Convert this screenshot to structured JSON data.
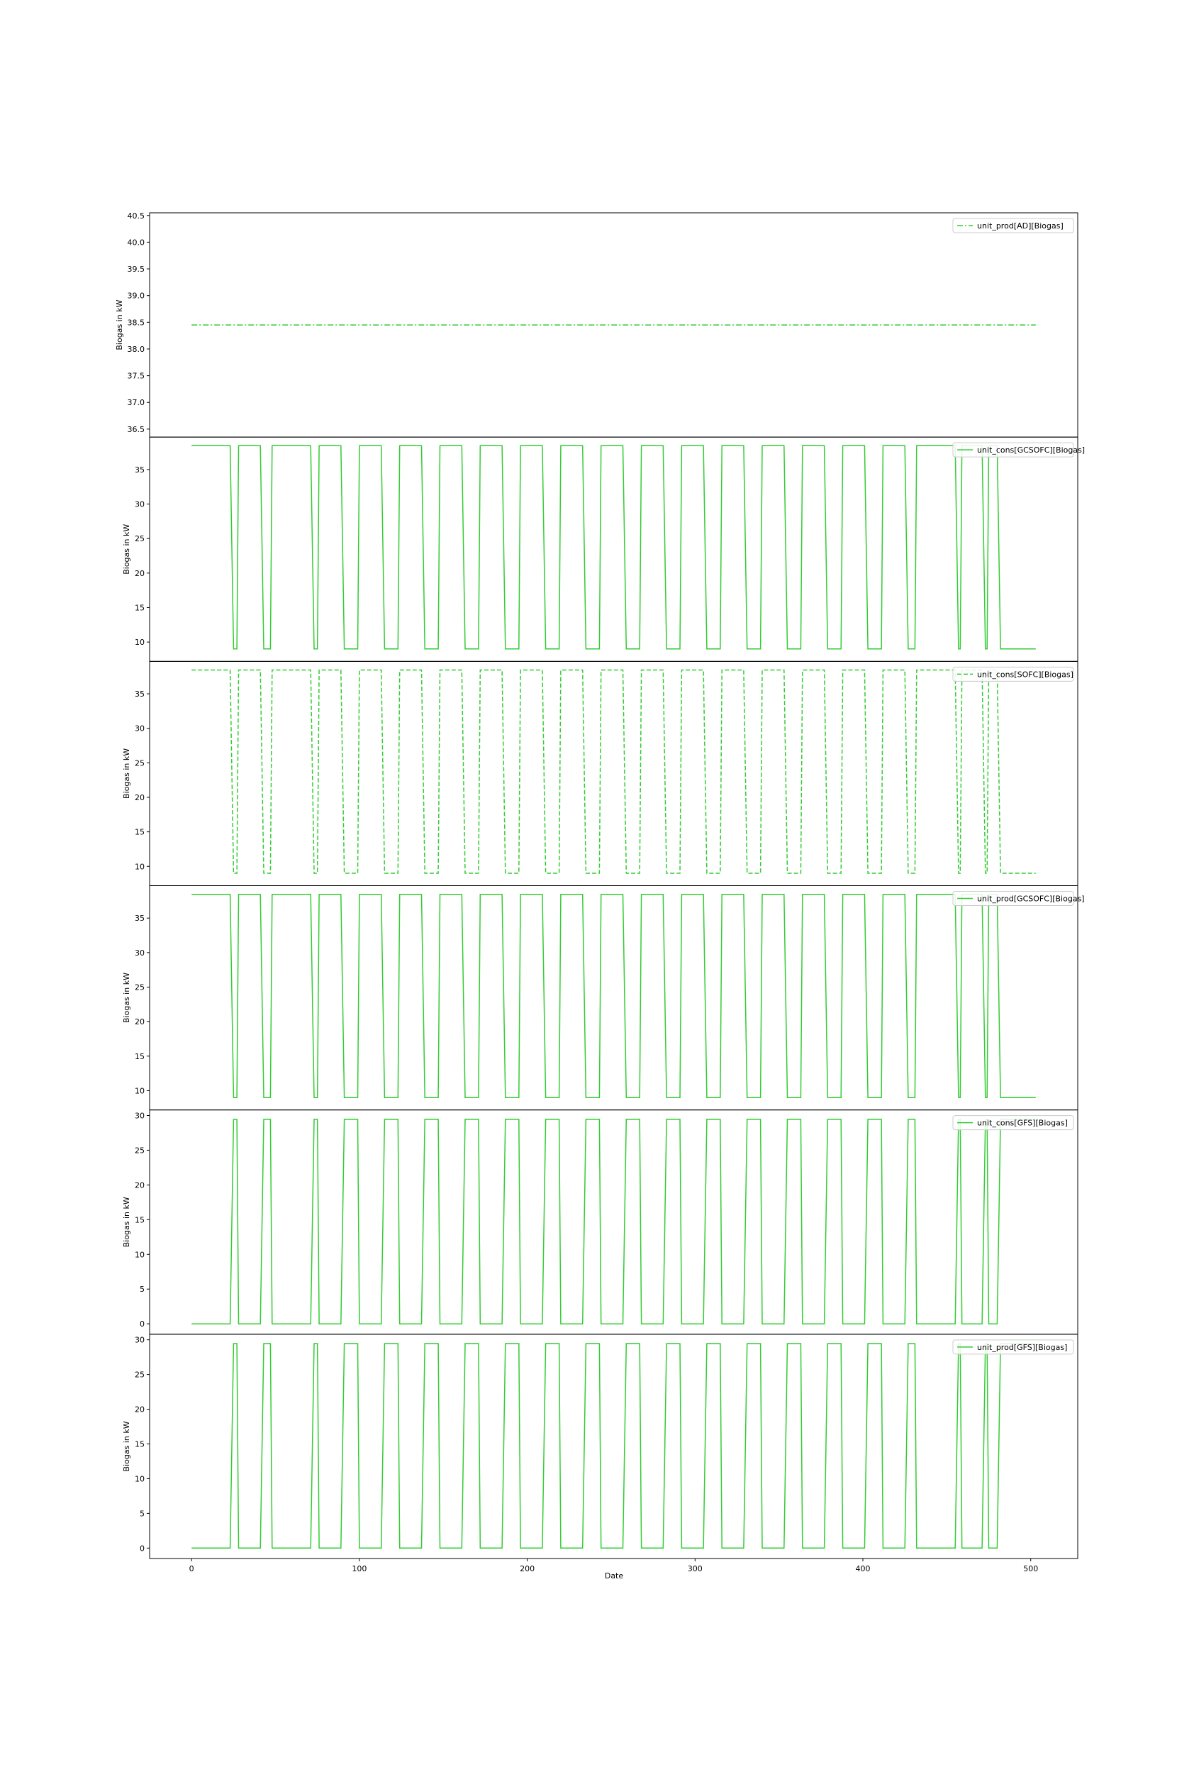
{
  "figure": {
    "xlabel": "Date"
  },
  "chart_data": [
    {
      "type": "line",
      "ylabel": "Biogas in kW",
      "xlim": [
        -25,
        528
      ],
      "ylim": [
        36.35,
        40.55
      ],
      "yticks": [
        36.5,
        37.0,
        37.5,
        38.0,
        38.5,
        39.0,
        39.5,
        40.0,
        40.5
      ],
      "ytick_labels": [
        "36.5",
        "37.0",
        "37.5",
        "38.0",
        "38.5",
        "39.0",
        "39.5",
        "40.0",
        "40.5"
      ],
      "line_style": "dashdot",
      "color": "#33cc33",
      "legend_position": "top-right",
      "series": [
        {
          "name": "unit_prod[AD][Biogas]",
          "x": [
            0,
            503
          ],
          "values": [
            38.45,
            38.45
          ]
        }
      ]
    },
    {
      "type": "line",
      "ylabel": "Biogas in kW",
      "xlim": [
        -25,
        528
      ],
      "ylim": [
        7.2,
        39.7
      ],
      "yticks": [
        10,
        15,
        20,
        25,
        30,
        35
      ],
      "ytick_labels": [
        "10",
        "15",
        "20",
        "25",
        "30",
        "35"
      ],
      "line_style": "solid",
      "color": "#33cc33",
      "legend_position": "top-right",
      "series": [
        {
          "name": "unit_cons[GCSOFC][Biogas]",
          "pattern": "high",
          "high": 38.45,
          "low": 9.0
        }
      ]
    },
    {
      "type": "line",
      "ylabel": "Biogas in kW",
      "xlim": [
        -25,
        528
      ],
      "ylim": [
        7.2,
        39.7
      ],
      "yticks": [
        10,
        15,
        20,
        25,
        30,
        35
      ],
      "ytick_labels": [
        "10",
        "15",
        "20",
        "25",
        "30",
        "35"
      ],
      "line_style": "dashed",
      "color": "#33cc33",
      "legend_position": "top-right",
      "series": [
        {
          "name": "unit_cons[SOFC][Biogas]",
          "pattern": "high",
          "high": 38.45,
          "low": 9.0
        }
      ]
    },
    {
      "type": "line",
      "ylabel": "Biogas in kW",
      "xlim": [
        -25,
        528
      ],
      "ylim": [
        7.2,
        39.7
      ],
      "yticks": [
        10,
        15,
        20,
        25,
        30,
        35
      ],
      "ytick_labels": [
        "10",
        "15",
        "20",
        "25",
        "30",
        "35"
      ],
      "line_style": "solid",
      "color": "#33cc33",
      "legend_position": "top-right",
      "series": [
        {
          "name": "unit_prod[GCSOFC][Biogas]",
          "pattern": "high",
          "high": 38.45,
          "low": 9.0
        }
      ]
    },
    {
      "type": "line",
      "ylabel": "Biogas in kW",
      "xlim": [
        -25,
        528
      ],
      "ylim": [
        -1.5,
        30.8
      ],
      "yticks": [
        0,
        5,
        10,
        15,
        20,
        25,
        30
      ],
      "ytick_labels": [
        "0",
        "5",
        "10",
        "15",
        "20",
        "25",
        "30"
      ],
      "line_style": "solid",
      "color": "#33cc33",
      "legend_position": "top-right",
      "series": [
        {
          "name": "unit_cons[GFS][Biogas]",
          "pattern": "low",
          "high": 29.45,
          "low": 0.0
        }
      ]
    },
    {
      "type": "line",
      "ylabel": "Biogas in kW",
      "xlim": [
        -25,
        528
      ],
      "ylim": [
        -1.5,
        30.8
      ],
      "yticks": [
        0,
        5,
        10,
        15,
        20,
        25,
        30
      ],
      "ytick_labels": [
        "0",
        "5",
        "10",
        "15",
        "20",
        "25",
        "30"
      ],
      "line_style": "solid",
      "color": "#33cc33",
      "legend_position": "top-right",
      "series": [
        {
          "name": "unit_prod[GFS][Biogas]",
          "pattern": "low",
          "high": 29.45,
          "low": 0.0
        }
      ]
    }
  ],
  "shared_x": {
    "xticks": [
      0,
      100,
      200,
      300,
      400,
      500
    ],
    "xtick_labels": [
      "0",
      "100",
      "200",
      "300",
      "400",
      "500"
    ],
    "x_end": 503,
    "high_intervals": [
      [
        0,
        23
      ],
      [
        28,
        41
      ],
      [
        48,
        71
      ],
      [
        76,
        89
      ],
      [
        100,
        113
      ],
      [
        124,
        137
      ],
      [
        148,
        161
      ],
      [
        172,
        185
      ],
      [
        196,
        209
      ],
      [
        220,
        233
      ],
      [
        244,
        257
      ],
      [
        268,
        281
      ],
      [
        292,
        305
      ],
      [
        316,
        329
      ],
      [
        340,
        353
      ],
      [
        364,
        377
      ],
      [
        388,
        401
      ],
      [
        412,
        425
      ],
      [
        432,
        455
      ],
      [
        459,
        471
      ],
      [
        475,
        480
      ]
    ]
  }
}
